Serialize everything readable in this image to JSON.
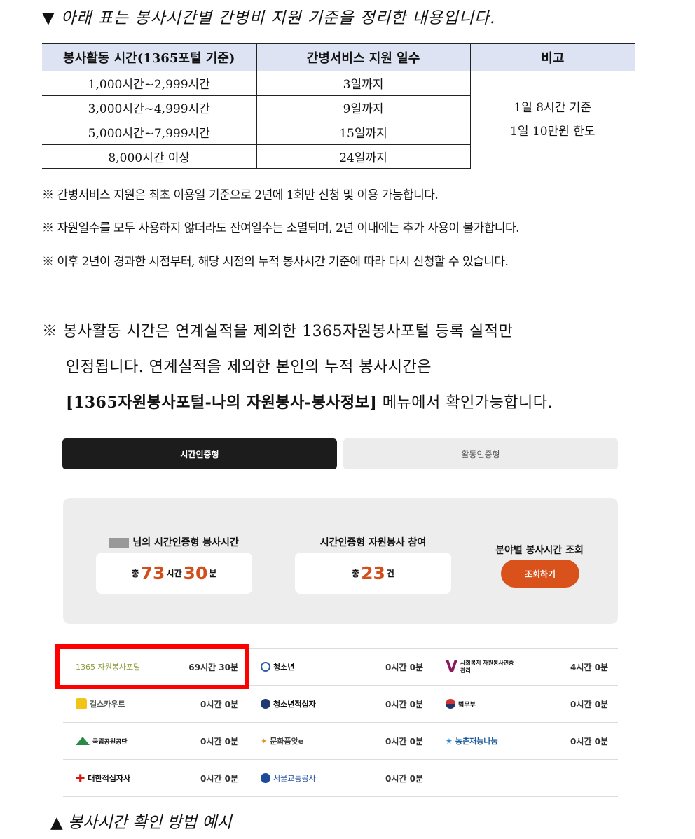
{
  "intro": "▼ 아래 표는 봉사시간별 간병비 지원 기준을 정리한 내용입니다.",
  "table": {
    "headers": [
      "봉사활동 시간(1365포털 기준)",
      "간병서비스 지원 일수",
      "비고"
    ],
    "rows": [
      [
        "1,000시간~2,999시간",
        "3일까지"
      ],
      [
        "3,000시간~4,999시간",
        "9일까지"
      ],
      [
        "5,000시간~7,999시간",
        "15일까지"
      ],
      [
        "8,000시간 이상",
        "24일까지"
      ]
    ],
    "remark_line1": "1일 8시간 기준",
    "remark_line2": "1일 10만원 한도"
  },
  "notes": [
    "※ 간병서비스 지원은 최초 이용일 기준으로 2년에 1회만 신청 및 이용 가능합니다.",
    "※ 자원일수를 모두 사용하지 않더라도 잔여일수는 소멸되며, 2년 이내에는 추가 사용이 불가합니다.",
    "※ 이후 2년이 경과한 시점부터, 해당 시점의 누적 봉사시간 기준에 따라 다시 신청할 수 있습니다."
  ],
  "para": {
    "line1": "※ 봉사활동 시간은 연계실적을 제외한 1365자원봉사포털 등록 실적만",
    "line2": "인정됩니다. 연계실적을 제외한 본인의 누적 봉사시간은",
    "bold": "[1365자원봉사포털-나의 자원봉사-봉사정보]",
    "line3_rest": " 메뉴에서 확인가능합니다."
  },
  "tabs": {
    "active": "시간인증형",
    "inactive": "활동인증형"
  },
  "summary": {
    "hours_label": "님의 시간인증형 봉사시간",
    "total_prefix": "총",
    "hours": "73",
    "hours_unit": "시간",
    "minutes": "30",
    "minutes_unit": "분",
    "participation_label": "시간인증형 자원봉사 참여",
    "count": "23",
    "count_unit": "건",
    "field_label": "분야별 봉사시간 조회",
    "button": "조회하기",
    "accent": "#d9521b"
  },
  "list": [
    [
      {
        "name": "1365 자원봉사포털",
        "hours": "69시간 30분"
      },
      {
        "name": "청소년",
        "hours": "0시간 0분"
      },
      {
        "name": "사회복지 자원봉사인증관리",
        "hours": "4시간 0분"
      }
    ],
    [
      {
        "name": "걸스카우트",
        "hours": "0시간 0분"
      },
      {
        "name": "청소년적십자",
        "hours": "0시간 0분"
      },
      {
        "name": "법무부",
        "hours": "0시간 0분"
      }
    ],
    [
      {
        "name": "국립공원공단",
        "hours": "0시간 0분"
      },
      {
        "name": "문화품앗e",
        "hours": "0시간 0분"
      },
      {
        "name": "농촌재능나눔",
        "hours": "0시간 0분"
      }
    ],
    [
      {
        "name": "대한적십자사",
        "hours": "0시간 0분"
      },
      {
        "name": "서울교통공사",
        "hours": "0시간 0분"
      }
    ]
  ],
  "caption": "▲ 봉사시간 확인 방법 예시"
}
